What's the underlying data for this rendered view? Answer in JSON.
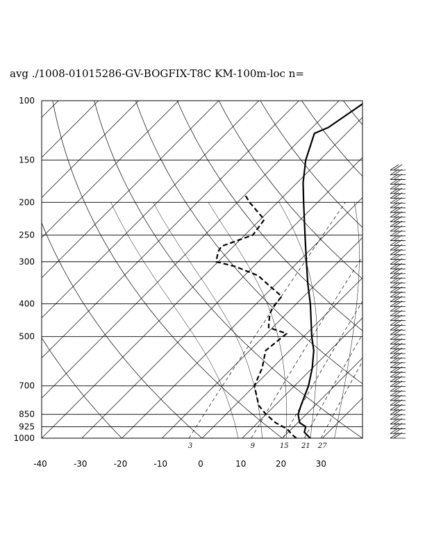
{
  "title": "avg ./1008-01015286-GV-BOGFIX-T8C KM-100m-loc n=",
  "chart_data": {
    "type": "line",
    "subtype": "skew-T log-P sounding",
    "title": "avg ./1008-01015286-GV-BOGFIX-T8C KM-100m-loc n=",
    "xlim": [
      -40,
      40
    ],
    "ylim": [
      1000,
      100
    ],
    "y_scale": "log",
    "x_ticks": [
      "-40",
      "-30",
      "-20",
      "-10",
      "0",
      "10",
      "20",
      "30"
    ],
    "y_ticks": [
      "100",
      "150",
      "200",
      "250",
      "300",
      "400",
      "500",
      "700",
      "850",
      "925",
      "1000"
    ],
    "mixing_ratio_labels": [
      "3",
      "9",
      "15",
      "21",
      "27"
    ],
    "series": [
      {
        "style": "solid",
        "points": [
          [
            1000,
            27
          ],
          [
            960,
            24
          ],
          [
            925,
            23
          ],
          [
            900,
            20.5
          ],
          [
            850,
            18
          ],
          [
            800,
            16.5
          ],
          [
            700,
            13.5
          ],
          [
            620,
            10
          ],
          [
            550,
            6
          ],
          [
            500,
            2
          ],
          [
            450,
            -2
          ],
          [
            400,
            -6.5
          ],
          [
            350,
            -12
          ],
          [
            300,
            -18
          ],
          [
            250,
            -25
          ],
          [
            200,
            -33.5
          ],
          [
            175,
            -38.5
          ],
          [
            150,
            -43.5
          ],
          [
            125,
            -48
          ],
          [
            120,
            -46
          ],
          [
            100,
            -43
          ]
        ]
      },
      {
        "style": "dashed",
        "points": [
          [
            1000,
            23.5
          ],
          [
            975,
            21.5
          ],
          [
            940,
            19
          ],
          [
            900,
            14.5
          ],
          [
            850,
            10
          ],
          [
            800,
            6
          ],
          [
            700,
            0
          ],
          [
            620,
            -2.5
          ],
          [
            550,
            -6
          ],
          [
            490,
            -5
          ],
          [
            470,
            -11
          ],
          [
            430,
            -14
          ],
          [
            410,
            -15
          ],
          [
            380,
            -15.5
          ],
          [
            350,
            -22
          ],
          [
            330,
            -26.5
          ],
          [
            310,
            -34.5
          ],
          [
            300,
            -40.5
          ],
          [
            280,
            -42.5
          ],
          [
            270,
            -43
          ],
          [
            250,
            -38
          ],
          [
            225,
            -39
          ],
          [
            200,
            -47
          ],
          [
            190,
            -50
          ]
        ]
      }
    ],
    "wind_barbs": {
      "levels": 58
    }
  }
}
